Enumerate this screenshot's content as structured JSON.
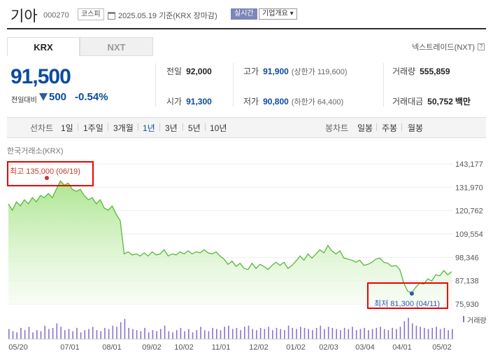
{
  "header": {
    "name": "기아",
    "code": "000270",
    "market": "코스피",
    "date_text": "2025.05.19 기준(KRX 장마감)",
    "realtime": "실시간",
    "overview": "기업개요"
  },
  "tabs": [
    {
      "label": "KRX",
      "active": true
    },
    {
      "label": "NXT",
      "active": false
    }
  ],
  "nxt_link": "넥스트레이드(NXT)",
  "nxt_help": "?",
  "quote": {
    "price": "91,500",
    "change_label": "전일대비",
    "change_amount": "500",
    "change_pct": "-0.54%"
  },
  "stats": {
    "prev_close_label": "전일",
    "prev_close": "92,000",
    "high_label": "고가",
    "high": "91,900",
    "upper_limit": "(상한가 119,600)",
    "volume_label": "거래량",
    "volume": "555,859",
    "open_label": "시가",
    "open": "91,300",
    "low_label": "저가",
    "low": "90,800",
    "lower_limit": "(하한가 64,400)",
    "amount_label": "거래대금",
    "amount": "50,752",
    "amount_unit": "백만"
  },
  "periods": {
    "line_label": "선차트",
    "line_items": [
      "1일",
      "1주일",
      "3개월",
      "1년",
      "3년",
      "5년",
      "10년"
    ],
    "active": "1년",
    "candle_label": "봉차트",
    "candle_items": [
      "일봉",
      "주봉",
      "월봉"
    ]
  },
  "chart_title": "한국거래소(KRX)",
  "chart_data": {
    "type": "area",
    "y_ticks": [
      "143,177",
      "131,970",
      "120,762",
      "109,554",
      "98,346",
      "87,138",
      "75,930"
    ],
    "ylim": [
      75930,
      143177
    ],
    "x_ticks": [
      "05/20",
      "07/01",
      "08/01",
      "09/02",
      "10/02",
      "11/01",
      "12/02",
      "01/02",
      "02/03",
      "03/04",
      "04/01",
      "05/02"
    ],
    "values": [
      124000,
      121000,
      125000,
      123000,
      126000,
      124000,
      127000,
      125000,
      128000,
      127000,
      129000,
      127000,
      131000,
      135000,
      133000,
      134000,
      131000,
      130000,
      131000,
      128000,
      126000,
      127000,
      124000,
      126000,
      122000,
      121000,
      123000,
      119000,
      116000,
      100000,
      101000,
      99500,
      100000,
      99000,
      100500,
      99000,
      101000,
      99500,
      100000,
      102000,
      99000,
      100000,
      99500,
      101000,
      100000,
      101500,
      100000,
      101000,
      100500,
      102000,
      100500,
      100000,
      101000,
      99000,
      97500,
      95000,
      96500,
      94000,
      95500,
      93000,
      92500,
      95500,
      93000,
      95000,
      94000,
      92500,
      94500,
      96000,
      94500,
      96000,
      93000,
      94500,
      96500,
      99000,
      97000,
      100000,
      98000,
      100000,
      102000,
      100500,
      104000,
      101500,
      100000,
      101500,
      98000,
      97500,
      97000,
      96000,
      97000,
      94500,
      95000,
      96000,
      97500,
      98000,
      96000,
      95500,
      94000,
      94500,
      92500,
      86000,
      82000,
      81300,
      84000,
      86000,
      85500,
      88000,
      87000,
      90000,
      89500,
      92000,
      90000,
      91500
    ],
    "high_marker": "최고 135,000 (06/19)",
    "low_marker": "최저 81,300 (04/11)",
    "volume_label": "거래량",
    "volume": [
      0.45,
      0.35,
      0.3,
      0.5,
      0.4,
      0.55,
      0.3,
      0.4,
      0.35,
      0.6,
      0.45,
      0.5,
      0.7,
      0.55,
      0.4,
      0.45,
      0.35,
      0.5,
      0.3,
      0.4,
      0.45,
      0.55,
      0.4,
      0.35,
      0.5,
      0.45,
      0.6,
      0.55,
      0.75,
      0.9,
      0.5,
      0.45,
      0.4,
      0.35,
      0.5,
      0.3,
      0.4,
      0.35,
      0.45,
      0.6,
      0.35,
      0.3,
      0.4,
      0.5,
      0.35,
      0.45,
      0.3,
      0.4,
      0.55,
      0.4,
      0.35,
      0.5,
      0.45,
      0.4,
      0.55,
      0.6,
      0.45,
      0.5,
      0.4,
      0.55,
      0.6,
      0.45,
      0.4,
      0.5,
      0.45,
      0.55,
      0.4,
      0.5,
      0.45,
      0.4,
      0.6,
      0.5,
      0.45,
      0.55,
      0.5,
      0.45,
      0.4,
      0.5,
      0.6,
      0.45,
      0.55,
      0.5,
      0.45,
      0.4,
      0.5,
      0.45,
      0.55,
      0.4,
      0.45,
      0.5,
      0.4,
      0.45,
      0.5,
      0.55,
      0.45,
      0.4,
      0.5,
      0.45,
      0.55,
      0.8,
      0.95,
      0.7,
      0.6,
      0.55,
      0.5,
      0.45,
      0.5,
      0.55,
      0.45,
      0.5,
      0.4,
      0.45
    ]
  }
}
